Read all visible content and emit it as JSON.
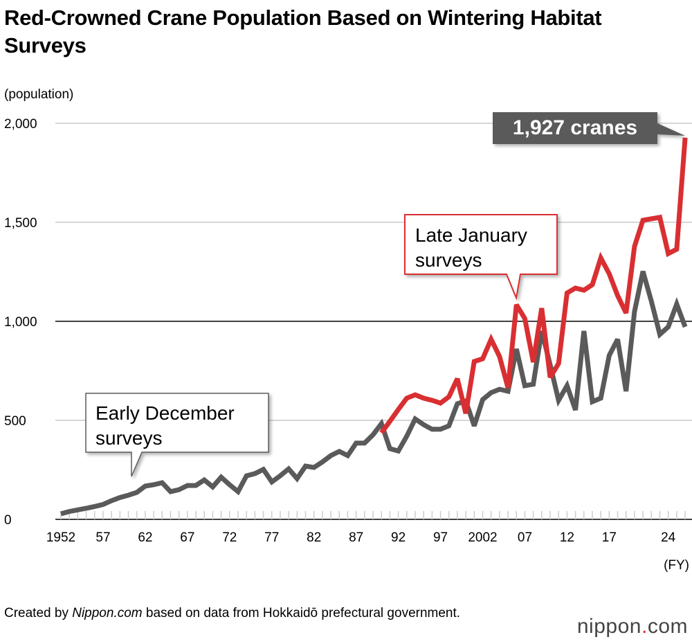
{
  "title": "Red-Crowned Crane Population Based on Wintering Habitat Surveys",
  "footer": {
    "prefix": "Created by ",
    "source_name": "Nippon.com",
    "suffix": " based on data from Hokkaidō prefectural government."
  },
  "logo": {
    "text_a": "nippon",
    "dot": ".",
    "text_b": "com"
  },
  "chart_data": {
    "type": "line",
    "title": "Red-Crowned Crane Population Based on Wintering Habitat Surveys",
    "ylabel": "(population)",
    "xlabel": "(FY)",
    "ylim": [
      0,
      2000
    ],
    "yticks": [
      0,
      500,
      1000,
      1500,
      2000
    ],
    "ytick_labels": [
      "0",
      "500",
      "1,000",
      "1,500",
      "2,000"
    ],
    "xlim": [
      1952,
      2026
    ],
    "xtick_years": [
      1952,
      1957,
      1962,
      1967,
      1972,
      1977,
      1982,
      1987,
      1992,
      1997,
      2002,
      2007,
      2012,
      2017,
      2024
    ],
    "xtick_labels": [
      "1952",
      "57",
      "62",
      "67",
      "72",
      "77",
      "82",
      "87",
      "92",
      "97",
      "2002",
      "07",
      "12",
      "17",
      "24"
    ],
    "grid": true,
    "colors": {
      "early": "#5a5a5a",
      "late": "#d92f32",
      "grid": "#c8c8c8"
    },
    "series": [
      {
        "name": "Early December surveys",
        "start_year": 1952,
        "values": [
          28,
          40,
          48,
          56,
          65,
          75,
          94,
          110,
          122,
          136,
          168,
          175,
          185,
          140,
          150,
          171,
          171,
          199,
          164,
          213,
          175,
          140,
          220,
          231,
          252,
          189,
          220,
          255,
          206,
          269,
          262,
          290,
          322,
          343,
          322,
          385,
          385,
          427,
          483,
          357,
          345,
          420,
          507,
          478,
          455,
          455,
          472,
          584,
          598,
          472,
          605,
          640,
          657,
          647,
          860,
          675,
          682,
          951,
          780,
          601,
          675,
          552,
          951,
          594,
          612,
          828,
          909,
          647,
          1049,
          1252,
          1101,
          934,
          972,
          1087,
          972
        ]
      },
      {
        "name": "Late January surveys",
        "start_year": 1990,
        "values": [
          437,
          495,
          555,
          612,
          629,
          612,
          601,
          587,
          619,
          710,
          535,
          797,
          811,
          909,
          822,
          664,
          1084,
          1014,
          794,
          1066,
          717,
          787,
          1143,
          1168,
          1157,
          1185,
          1320,
          1240,
          1130,
          1042,
          1378,
          1510,
          1518,
          1525,
          1342,
          1364,
          1927
        ]
      }
    ],
    "annotations": {
      "latest": "1,927 cranes",
      "late_label": "Late January surveys",
      "early_label": "Early December surveys"
    }
  }
}
